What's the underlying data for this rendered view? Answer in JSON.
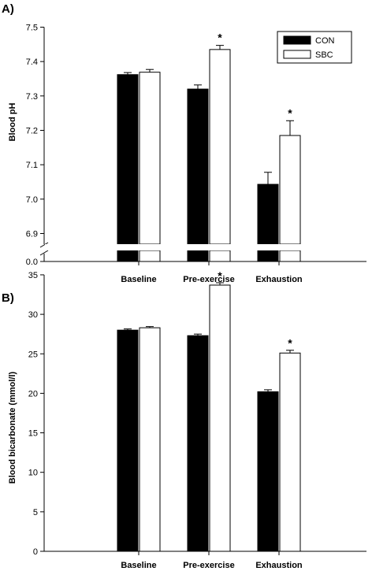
{
  "chart_data": [
    {
      "panel_label": "A)",
      "type": "bar",
      "ylabel": "Blood pH",
      "categories": [
        "Baseline",
        "Pre-exercise",
        "Exhaustion"
      ],
      "yticks": [
        "6.9",
        "7.0",
        "7.1",
        "7.2",
        "7.3",
        "7.4",
        "7.5"
      ],
      "ybreak_label": "0.0",
      "ylim": [
        6.85,
        7.5
      ],
      "axis_break": true,
      "series": [
        {
          "name": "CON",
          "fill": "#000000",
          "values": [
            7.362,
            7.32,
            7.043
          ],
          "errors": [
            0.006,
            0.012,
            0.035
          ]
        },
        {
          "name": "SBC",
          "fill": "#ffffff",
          "values": [
            7.369,
            7.435,
            7.185
          ],
          "errors": [
            0.008,
            0.012,
            0.043
          ]
        }
      ],
      "significance": [
        {
          "category": "Pre-exercise",
          "series": "SBC",
          "marker": "*"
        },
        {
          "category": "Exhaustion",
          "series": "SBC",
          "marker": "*"
        }
      ],
      "legend_position": "top-right"
    },
    {
      "panel_label": "B)",
      "type": "bar",
      "ylabel": "Blood bicarbonate (mmol/l)",
      "categories": [
        "Baseline",
        "Pre-exercise",
        "Exhaustion"
      ],
      "yticks": [
        "0",
        "5",
        "10",
        "15",
        "20",
        "25",
        "30",
        "35"
      ],
      "ylim": [
        0,
        35
      ],
      "series": [
        {
          "name": "CON",
          "fill": "#000000",
          "values": [
            28.0,
            27.3,
            20.2
          ],
          "errors": [
            0.15,
            0.2,
            0.25
          ]
        },
        {
          "name": "SBC",
          "fill": "#ffffff",
          "values": [
            28.3,
            33.7,
            25.1
          ],
          "errors": [
            0.15,
            0.3,
            0.35
          ]
        }
      ],
      "significance": [
        {
          "category": "Pre-exercise",
          "series": "SBC",
          "marker": "*"
        },
        {
          "category": "Exhaustion",
          "series": "SBC",
          "marker": "*"
        }
      ]
    }
  ]
}
